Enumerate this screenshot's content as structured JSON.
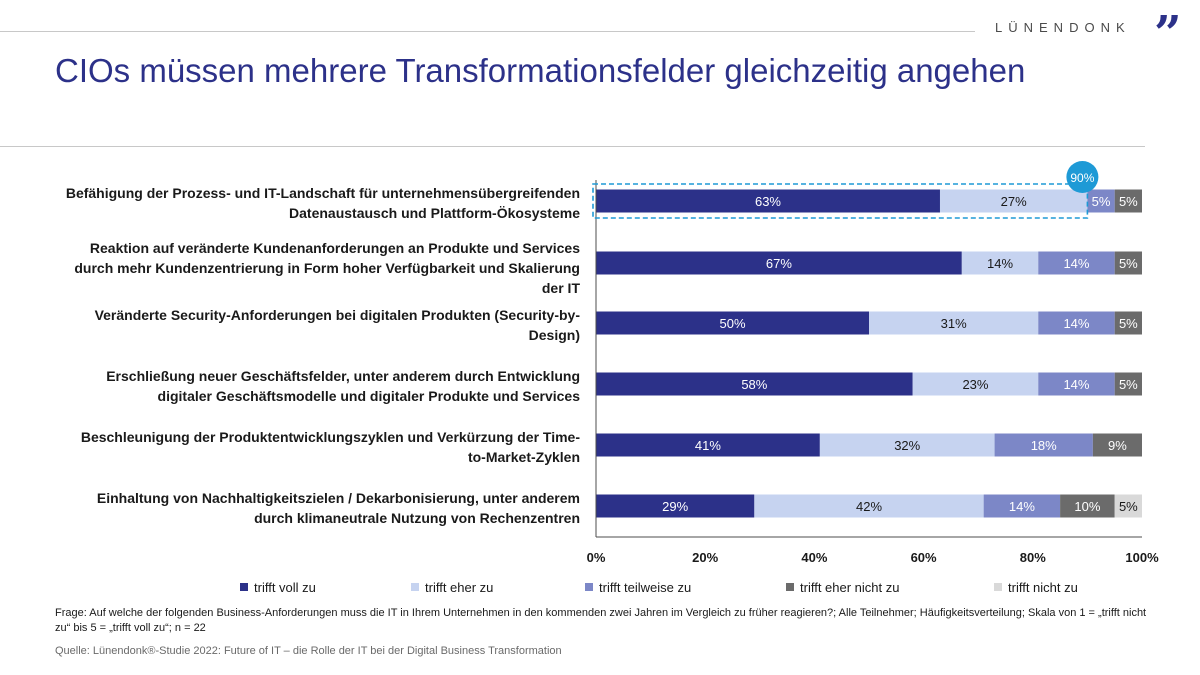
{
  "brand": {
    "name": "LÜNENDONK",
    "mark": "”"
  },
  "title": "CIOs müssen mehrere Transformationsfelder gleichzeitig angehen",
  "colors": {
    "trifft_voll_zu": "#2c3189",
    "trifft_eher_zu": "#c6d3f0",
    "trifft_teilweise_zu": "#7c87c7",
    "trifft_eher_nicht_zu": "#6b6b6b",
    "trifft_nicht_zu": "#d9d9d9",
    "highlight": "#1e9ad6"
  },
  "chart_data": {
    "type": "bar",
    "orientation": "horizontal-stacked",
    "categories": [
      "Befähigung der Prozess- und IT-Landschaft für unternehmensübergreifenden Datenaustausch und Plattform-Ökosysteme",
      "Reaktion auf veränderte Kundenanforderungen an Produkte und Services durch mehr Kundenzentrierung in Form hoher Verfügbarkeit und Skalierung der IT",
      "Veränderte Security-Anforderungen bei digitalen Produkten (Security-by-Design)",
      "Erschließung neuer Geschäftsfelder, unter anderem durch Entwicklung digitaler Geschäftsmodelle und digitaler Produkte und Services",
      "Beschleunigung der Produktentwicklungszyklen und Verkürzung der Time-to-Market-Zyklen",
      "Einhaltung von Nachhaltigkeitszielen / Dekarbonisierung, unter anderem durch klimaneutrale Nutzung von Rechenzentren"
    ],
    "category_lines": [
      [
        "Befähigung der Prozess- und IT-Landschaft für unternehmensübergreifenden",
        "Datenaustausch und Plattform-Ökosysteme"
      ],
      [
        "Reaktion auf veränderte Kundenanforderungen an Produkte und Services",
        "durch mehr Kundenzentrierung in Form hoher Verfügbarkeit und Skalierung",
        "der IT"
      ],
      [
        "Veränderte Security-Anforderungen bei digitalen Produkten (Security-by-",
        "Design)"
      ],
      [
        "Erschließung neuer Geschäftsfelder, unter anderem durch Entwicklung",
        "digitaler Geschäftsmodelle und digitaler Produkte und Services"
      ],
      [
        "Beschleunigung der Produktentwicklungszyklen und Verkürzung der Time-",
        "to-Market-Zyklen"
      ],
      [
        "Einhaltung von Nachhaltigkeitszielen / Dekarbonisierung, unter anderem",
        "durch klimaneutrale Nutzung von Rechenzentren"
      ]
    ],
    "series": [
      {
        "name": "trifft voll zu",
        "values": [
          63,
          67,
          50,
          58,
          41,
          29
        ],
        "labels": [
          "63%",
          "67%",
          "50%",
          "58%",
          "41%",
          "29%"
        ]
      },
      {
        "name": "trifft eher zu",
        "values": [
          27,
          14,
          31,
          23,
          32,
          42
        ],
        "labels": [
          "27%",
          "14%",
          "31%",
          "23%",
          "32%",
          "42%"
        ]
      },
      {
        "name": "trifft teilweise zu",
        "values": [
          5,
          14,
          14,
          14,
          18,
          14
        ],
        "labels": [
          "5%",
          "14%",
          "14%",
          "14%",
          "18%",
          "14%"
        ]
      },
      {
        "name": "trifft eher nicht zu",
        "values": [
          5,
          5,
          5,
          5,
          9,
          10
        ],
        "labels": [
          "5%",
          "5%",
          "5%",
          "5%",
          "9%",
          "10%"
        ]
      },
      {
        "name": "trifft nicht zu",
        "values": [
          0,
          0,
          0,
          0,
          0,
          5
        ],
        "labels": [
          "",
          "",
          "",
          "",
          "",
          "5%"
        ]
      }
    ],
    "xlim": [
      0,
      100
    ],
    "xticks": [
      "0%",
      "20%",
      "40%",
      "60%",
      "80%",
      "100%"
    ],
    "highlight": {
      "category_index": 0,
      "value": 90,
      "label": "90%"
    },
    "legend_position": "bottom",
    "grid": false
  },
  "legend": [
    "trifft voll zu",
    "trifft eher zu",
    "trifft teilweise zu",
    "trifft eher nicht zu",
    "trifft nicht zu"
  ],
  "note": "Frage: Auf welche der folgenden Business-Anforderungen muss die IT in Ihrem Unternehmen in den kommenden zwei Jahren im Vergleich zu früher reagieren?; Alle Teilnehmer; Häufigkeitsverteilung; Skala von 1 = „trifft nicht zu“ bis 5 = „trifft voll zu“; n = 22",
  "source": "Quelle: Lünendonk®-Studie 2022: Future of IT – die Rolle der IT bei der Digital Business Transformation"
}
